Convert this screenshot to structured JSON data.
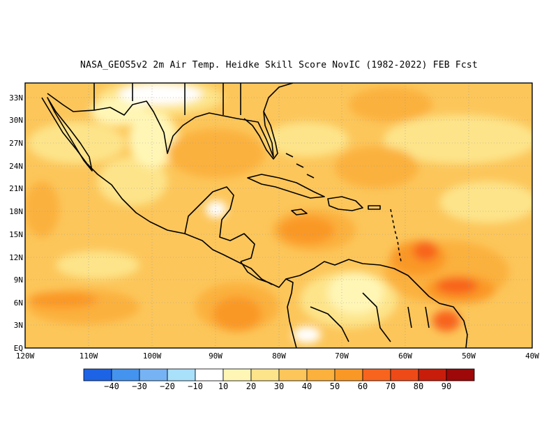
{
  "title": "NASA_GEOS5v2  2m Air Temp. Heidke Skill Score NovIC (1982-2022) FEB Fcst",
  "map": {
    "lon_range": [
      "120W",
      "40W"
    ],
    "lat_range": [
      "EQ",
      "34N"
    ],
    "lon_ticks": [
      "120W",
      "110W",
      "100W",
      "90W",
      "80W",
      "70W",
      "60W",
      "50W",
      "40W"
    ],
    "lat_ticks": [
      "EQ",
      "3N",
      "6N",
      "9N",
      "12N",
      "15N",
      "18N",
      "21N",
      "24N",
      "27N",
      "30N",
      "33N"
    ],
    "grid": "dotted",
    "fill_colors": {
      "10_20": "#fff6b6",
      "20_30": "#fde48a",
      "30_40": "#fcc65a",
      "40_50": "#fbb13c",
      "50_60": "#fa9826",
      "60_70": "#f8641d",
      "70_80": "#ee4a17"
    }
  },
  "colorbar": {
    "labels": [
      "-40",
      "-30",
      "-20",
      "-10",
      "10",
      "20",
      "30",
      "40",
      "50",
      "60",
      "70",
      "80",
      "90"
    ],
    "colors": [
      "#1d63e6",
      "#4493ee",
      "#76b3f4",
      "#a9e0fa",
      "#ffffff",
      "#fff6b6",
      "#fde48a",
      "#fcc65a",
      "#fbb13c",
      "#fa9826",
      "#f8641d",
      "#ee4a17",
      "#c81d0a",
      "#9e0808"
    ]
  }
}
